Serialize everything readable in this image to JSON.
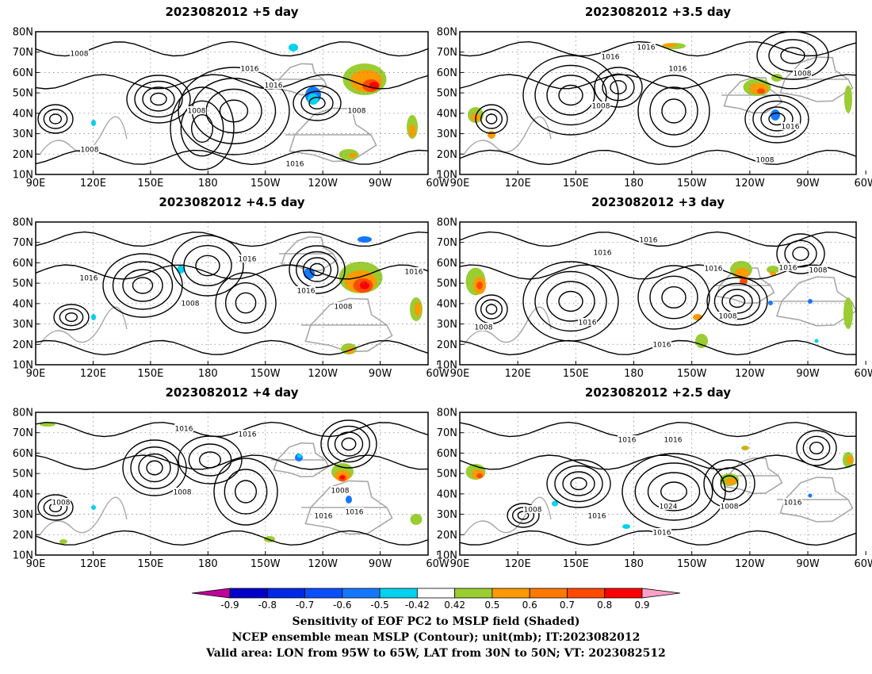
{
  "panels": [
    {
      "title": "2023082012  +5 day",
      "labels": [
        "1008",
        "1016",
        "1016",
        "1008",
        "1008",
        "1008",
        "1016"
      ]
    },
    {
      "title": "2023082012  +3.5  day",
      "labels": [
        "1016",
        "1016",
        "1016",
        "1008",
        "1008",
        "1016",
        "1008"
      ]
    },
    {
      "title": "2023082012  +4.5  day",
      "labels": [
        "1016",
        "1016",
        "1008",
        "1016",
        "1008",
        "1016"
      ]
    },
    {
      "title": "2023082012  +3  day",
      "labels": [
        "1016",
        "1016",
        "1016",
        "1016",
        "1008",
        "1008",
        "1008",
        "1016",
        "1016"
      ]
    },
    {
      "title": "2023082012  +4  day",
      "labels": [
        "1016",
        "1016",
        "1008",
        "1008",
        "1008",
        "1016",
        "1016"
      ]
    },
    {
      "title": "2023082012  +2.5  day",
      "labels": [
        "1016",
        "1016",
        "1008",
        "1016",
        "1016",
        "1024",
        "1008",
        "1016"
      ]
    }
  ],
  "axes": {
    "lat_ticks": [
      "80N",
      "70N",
      "60N",
      "50N",
      "40N",
      "30N",
      "20N",
      "10N"
    ],
    "lon_ticks": [
      "90E",
      "120E",
      "150E",
      "180",
      "150W",
      "120W",
      "90W",
      "60W"
    ],
    "lat_range": [
      10,
      80
    ],
    "lon_range": [
      90,
      295
    ]
  },
  "colorbar": {
    "ticks": [
      "-0.9",
      "-0.8",
      "-0.7",
      "-0.6",
      "-0.5",
      "-0.42",
      "0.42",
      "0.5",
      "0.6",
      "0.7",
      "0.8",
      "0.9"
    ],
    "colors": [
      "#c0009a",
      "#0000c8",
      "#0028e6",
      "#0a50ff",
      "#1478ff",
      "#2aa8f5",
      "#00d2f0",
      "#ffffff",
      "#9acd32",
      "#ff9a00",
      "#ff7800",
      "#ff4a00",
      "#ff2a00",
      "#ff0000",
      "#ffa0c8"
    ]
  },
  "caption": {
    "line1": "Sensitivity of EOF PC2 to MSLP field (Shaded)",
    "line2": "NCEP ensemble mean MSLP (Contour); unit(mb); IT:2023082012",
    "line3": "Valid area: LON from 95W to 65W, LAT from 30N to 50N; VT: 2023082512"
  }
}
